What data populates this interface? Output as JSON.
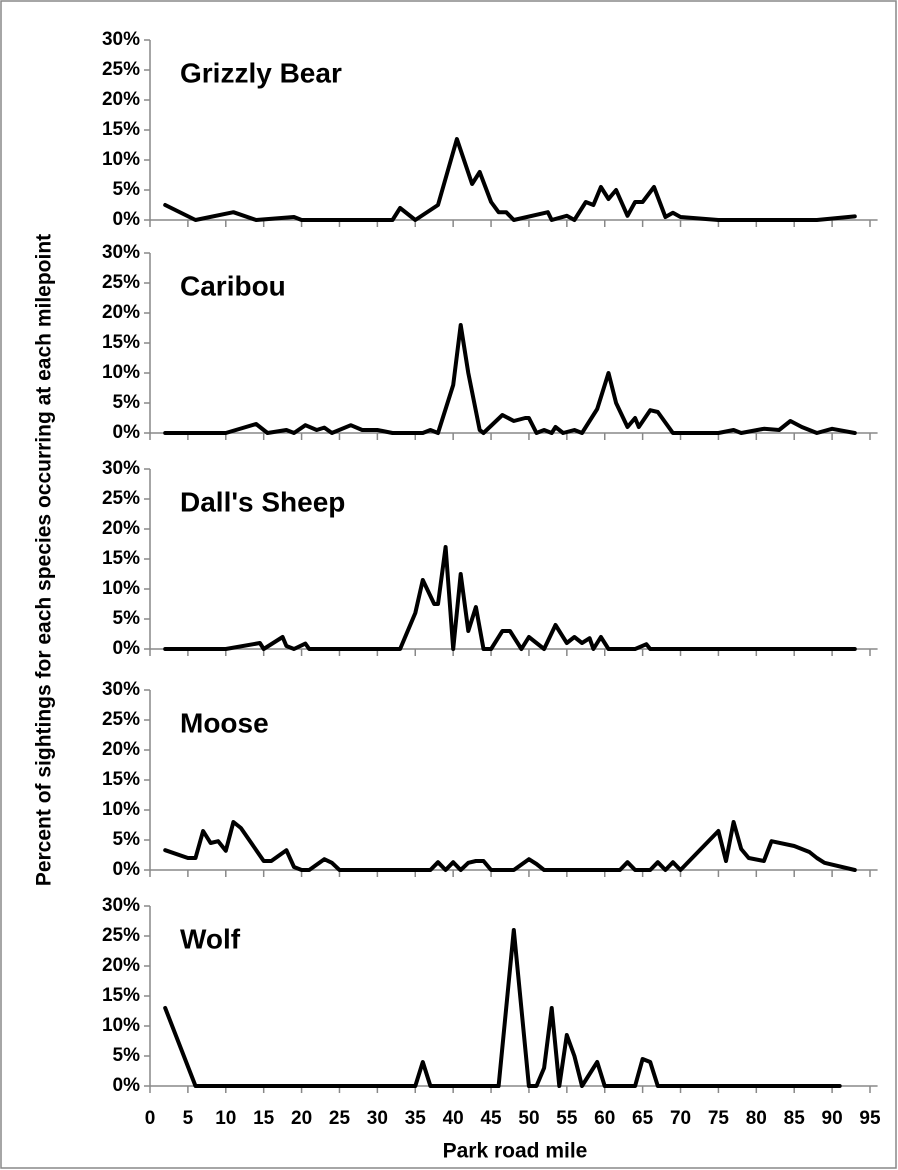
{
  "chart_data": [
    {
      "type": "line",
      "title": "Grizzly Bear",
      "y_label": "Percent of sightings for each species occurring at each milepoint",
      "color": "#000000",
      "x": [
        2,
        6,
        11,
        14,
        19,
        20,
        32,
        33,
        35,
        38,
        40.5,
        42.5,
        43.5,
        45,
        46,
        47,
        48,
        52.5,
        53,
        55,
        56,
        57.5,
        58.5,
        59.5,
        60.5,
        61.5,
        63,
        64,
        65,
        66.5,
        68,
        69,
        70,
        75,
        88,
        93
      ],
      "values": [
        2.5,
        0,
        1.3,
        0,
        0.5,
        0,
        0,
        2,
        0,
        2.5,
        13.5,
        6,
        8,
        3,
        1.3,
        1.3,
        0,
        1.3,
        0,
        0.7,
        0,
        3,
        2.5,
        5.5,
        3.5,
        5,
        0.7,
        3,
        3,
        5.5,
        0.5,
        1.2,
        0.5,
        0,
        0,
        0.6
      ],
      "xlim": [
        0,
        96
      ],
      "ylim": [
        0,
        30
      ],
      "yticks": [
        {
          "value": 0,
          "label": "0%"
        },
        {
          "value": 5,
          "label": "5%"
        },
        {
          "value": 10,
          "label": "10%"
        },
        {
          "value": 15,
          "label": "15%"
        },
        {
          "value": 20,
          "label": "20%"
        },
        {
          "value": 25,
          "label": "25%"
        },
        {
          "value": 30,
          "label": "30%"
        }
      ]
    },
    {
      "type": "line",
      "title": "Caribou",
      "color": "#000000",
      "x": [
        2,
        10,
        14,
        15.5,
        18,
        19,
        20.5,
        22,
        23,
        24,
        26.5,
        28,
        30,
        32,
        36,
        37,
        38,
        40,
        41,
        42,
        43.5,
        44,
        46.5,
        48,
        49.5,
        50,
        51,
        52,
        53,
        53.5,
        54.5,
        56,
        57,
        59,
        60.5,
        61.5,
        63,
        64,
        64.5,
        66,
        67,
        69,
        75,
        77,
        78,
        81,
        83,
        84.5,
        86,
        88,
        90,
        93
      ],
      "values": [
        0,
        0,
        1.5,
        0,
        0.5,
        0,
        1.3,
        0.5,
        0.9,
        0,
        1.3,
        0.5,
        0.5,
        0,
        0,
        0.5,
        0,
        8,
        18,
        10,
        0.5,
        0,
        3,
        2,
        2.5,
        2.5,
        0,
        0.5,
        0,
        1,
        0,
        0.5,
        0,
        4,
        10,
        5,
        1,
        2.5,
        1,
        3.8,
        3.5,
        0,
        0,
        0.5,
        0,
        0.7,
        0.5,
        2,
        1,
        0,
        0.7,
        0
      ],
      "xlim": [
        0,
        96
      ],
      "ylim": [
        0,
        30
      ],
      "yticks": [
        {
          "value": 0,
          "label": "0%"
        },
        {
          "value": 5,
          "label": "5%"
        },
        {
          "value": 10,
          "label": "10%"
        },
        {
          "value": 15,
          "label": "15%"
        },
        {
          "value": 20,
          "label": "20%"
        },
        {
          "value": 25,
          "label": "25%"
        },
        {
          "value": 30,
          "label": "30%"
        }
      ]
    },
    {
      "type": "line",
      "title": "Dall's Sheep",
      "color": "#000000",
      "x": [
        2,
        10,
        14.5,
        15,
        17.5,
        18,
        19,
        20.5,
        21,
        33,
        35,
        36,
        37.5,
        38,
        39,
        40,
        41,
        42,
        43,
        44,
        45,
        46.5,
        47.5,
        49,
        50,
        51,
        52,
        53.5,
        55,
        56,
        57,
        58,
        58.5,
        59.5,
        60.5,
        64,
        65.5,
        66,
        93
      ],
      "values": [
        0,
        0,
        1,
        0,
        2,
        0.5,
        0,
        0.9,
        0,
        0,
        6,
        11.5,
        7.5,
        7.5,
        17,
        0,
        12.5,
        3,
        7,
        0,
        0,
        3,
        3,
        0,
        2,
        1,
        0,
        4,
        1,
        2,
        1,
        1.8,
        0,
        2,
        0,
        0,
        0.8,
        0,
        0
      ],
      "xlim": [
        0,
        96
      ],
      "ylim": [
        0,
        30
      ],
      "yticks": [
        {
          "value": 0,
          "label": "0%"
        },
        {
          "value": 5,
          "label": "5%"
        },
        {
          "value": 10,
          "label": "10%"
        },
        {
          "value": 15,
          "label": "15%"
        },
        {
          "value": 20,
          "label": "20%"
        },
        {
          "value": 25,
          "label": "25%"
        },
        {
          "value": 30,
          "label": "30%"
        }
      ]
    },
    {
      "type": "line",
      "title": "Moose",
      "color": "#000000",
      "x": [
        2,
        5,
        6,
        7,
        8,
        9,
        10,
        11,
        12,
        15,
        16,
        18,
        19,
        20,
        21,
        23,
        24,
        25,
        37,
        38,
        39,
        40,
        41,
        42,
        43,
        44,
        45,
        48,
        50,
        51,
        52,
        62,
        63,
        64,
        66,
        67,
        68,
        69,
        70,
        75,
        76,
        77,
        78,
        79,
        81,
        82,
        85,
        87,
        88,
        89,
        93
      ],
      "values": [
        3.3,
        2,
        2,
        6.5,
        4.5,
        4.8,
        3.2,
        8,
        7,
        1.5,
        1.5,
        3.3,
        0.5,
        0,
        0,
        1.8,
        1.2,
        0,
        0,
        1.3,
        0,
        1.3,
        0,
        1.2,
        1.5,
        1.5,
        0,
        0,
        1.8,
        1,
        0,
        0,
        1.3,
        0,
        0,
        1.3,
        0,
        1.3,
        0,
        6.5,
        1.5,
        8,
        3.5,
        2,
        1.5,
        4.8,
        4,
        3,
        2,
        1.2,
        0
      ],
      "xlim": [
        0,
        96
      ],
      "ylim": [
        0,
        30
      ],
      "yticks": [
        {
          "value": 0,
          "label": "0%"
        },
        {
          "value": 5,
          "label": "5%"
        },
        {
          "value": 10,
          "label": "10%"
        },
        {
          "value": 15,
          "label": "15%"
        },
        {
          "value": 20,
          "label": "20%"
        },
        {
          "value": 25,
          "label": "25%"
        },
        {
          "value": 30,
          "label": "30%"
        }
      ]
    },
    {
      "type": "line",
      "title": "Wolf",
      "x_label": "Park road mile",
      "color": "#000000",
      "x": [
        2,
        6,
        35,
        36,
        37,
        46,
        48,
        50,
        51,
        52,
        53,
        54,
        55,
        56,
        57,
        59,
        60,
        64,
        65,
        66,
        67,
        91
      ],
      "values": [
        13,
        0,
        0,
        4,
        0,
        0,
        26,
        0,
        0,
        3,
        13,
        0,
        8.5,
        5,
        0,
        4,
        0,
        0,
        4.5,
        4,
        0,
        0
      ],
      "xlim": [
        0,
        96
      ],
      "ylim": [
        0,
        30
      ],
      "xticks": [
        0,
        5,
        10,
        15,
        20,
        25,
        30,
        35,
        40,
        45,
        50,
        55,
        60,
        65,
        70,
        75,
        80,
        85,
        90,
        95
      ],
      "yticks": [
        {
          "value": 0,
          "label": "0%"
        },
        {
          "value": 5,
          "label": "5%"
        },
        {
          "value": 10,
          "label": "10%"
        },
        {
          "value": 15,
          "label": "15%"
        },
        {
          "value": 20,
          "label": "20%"
        },
        {
          "value": 25,
          "label": "25%"
        },
        {
          "value": 30,
          "label": "30%"
        }
      ]
    }
  ]
}
